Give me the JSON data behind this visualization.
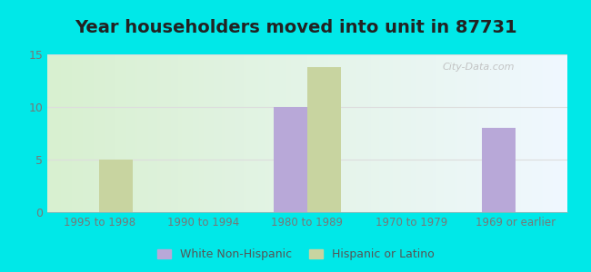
{
  "title": "Year householders moved into unit in 87731",
  "categories": [
    "1995 to 1998",
    "1990 to 1994",
    "1980 to 1989",
    "1970 to 1979",
    "1969 or earlier"
  ],
  "white_non_hispanic": [
    0,
    0,
    10,
    0,
    8
  ],
  "hispanic_or_latino": [
    5,
    0,
    13.8,
    0,
    0
  ],
  "white_color": "#b8a8d8",
  "hispanic_color": "#c8d4a0",
  "background_outer": "#00e8e8",
  "ylim": [
    0,
    15
  ],
  "yticks": [
    0,
    5,
    10,
    15
  ],
  "bar_width": 0.32,
  "title_fontsize": 14,
  "grid_color": "#dddddd",
  "tick_color": "#777777"
}
